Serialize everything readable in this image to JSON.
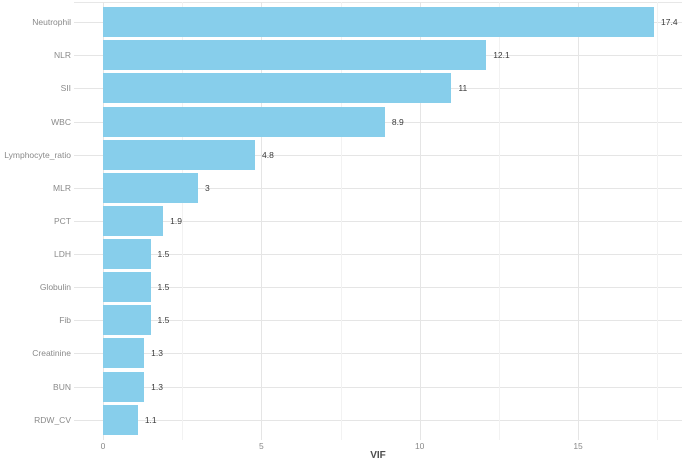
{
  "chart_data": {
    "type": "bar",
    "orientation": "horizontal",
    "title": "",
    "xlabel": "VIF",
    "ylabel": "",
    "categories": [
      "Neutrophil",
      "NLR",
      "SII",
      "WBC",
      "Lymphocyte_ratio",
      "MLR",
      "PCT",
      "LDH",
      "Globulin",
      "Fib",
      "Creatinine",
      "BUN",
      "RDW_CV"
    ],
    "values": [
      17.4,
      12.1,
      11,
      8.9,
      4.8,
      3,
      1.9,
      1.5,
      1.5,
      1.5,
      1.3,
      1.3,
      1.1
    ],
    "value_labels": [
      "17.4",
      "12.1",
      "11",
      "8.9",
      "4.8",
      "3",
      "1.9",
      "1.5",
      "1.5",
      "1.5",
      "1.3",
      "1.3",
      "1.1"
    ],
    "x_major_ticks": [
      0,
      5,
      10,
      15
    ],
    "x_tick_labels": [
      "0",
      "5",
      "10",
      "15"
    ],
    "x_minor_ticks": [
      2.5,
      7.5,
      12.5,
      17.5
    ],
    "xlim": [
      -0.9,
      18.3
    ],
    "grid": "on",
    "legend_position": "none",
    "colors": {
      "bar_fill": "#87CEEB",
      "grid_major": "#e5e5e5",
      "grid_minor": "#f2f2f2",
      "axis_text": "#8a8a8a",
      "value_text": "#3b3b3b",
      "axis_title": "#4d4d4d",
      "background": "#ffffff"
    }
  }
}
